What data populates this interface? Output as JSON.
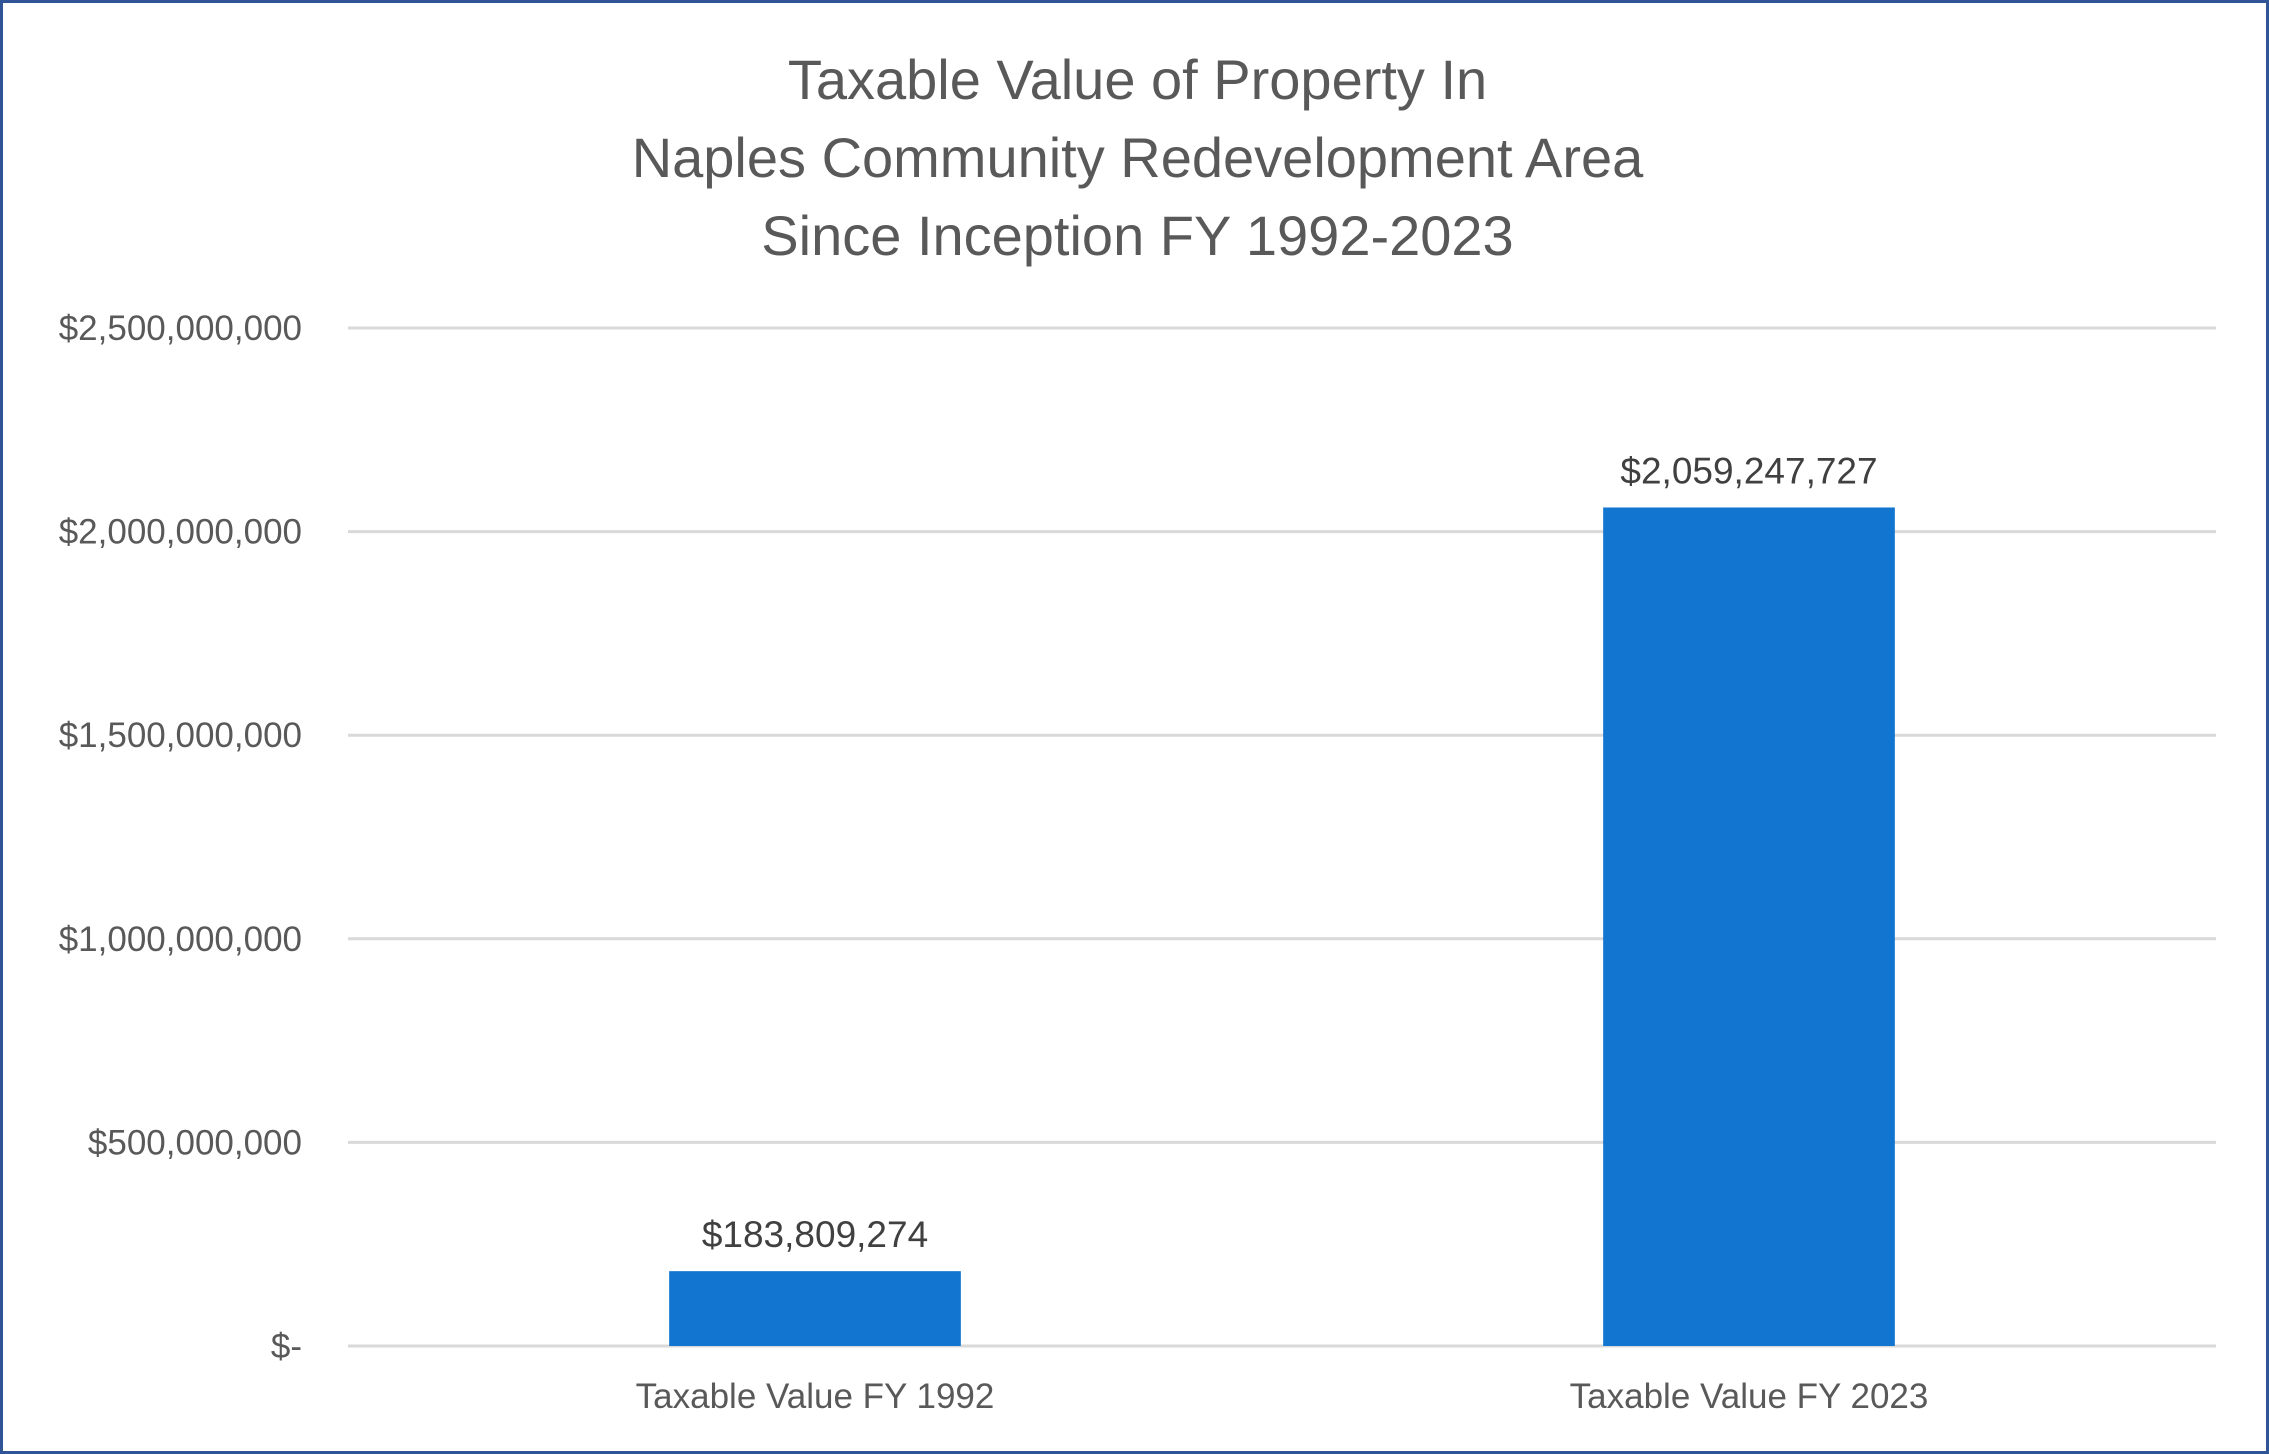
{
  "chart_data": {
    "type": "bar",
    "title_lines": [
      "Taxable Value of Property In",
      "Naples Community Redevelopment Area",
      "Since Inception FY 1992-2023"
    ],
    "categories": [
      "Taxable Value FY 1992",
      "Taxable Value FY 2023"
    ],
    "values": [
      183809274,
      2059247727
    ],
    "data_labels": [
      "$183,809,274",
      "$2,059,247,727"
    ],
    "ylim": [
      0,
      2500000000
    ],
    "y_ticks": [
      0,
      500000000,
      1000000000,
      1500000000,
      2000000000,
      2500000000
    ],
    "y_tick_labels": [
      "$-",
      "$500,000,000",
      "$1,000,000,000",
      "$1,500,000,000",
      "$2,000,000,000",
      "$2,500,000,000"
    ],
    "xlabel": "",
    "ylabel": "",
    "grid": true,
    "legend": "none",
    "colors": {
      "bar": "#1275cf",
      "grid": "#d9d9d9",
      "axis": "#d9d9d9",
      "border": "#2f5597"
    }
  }
}
